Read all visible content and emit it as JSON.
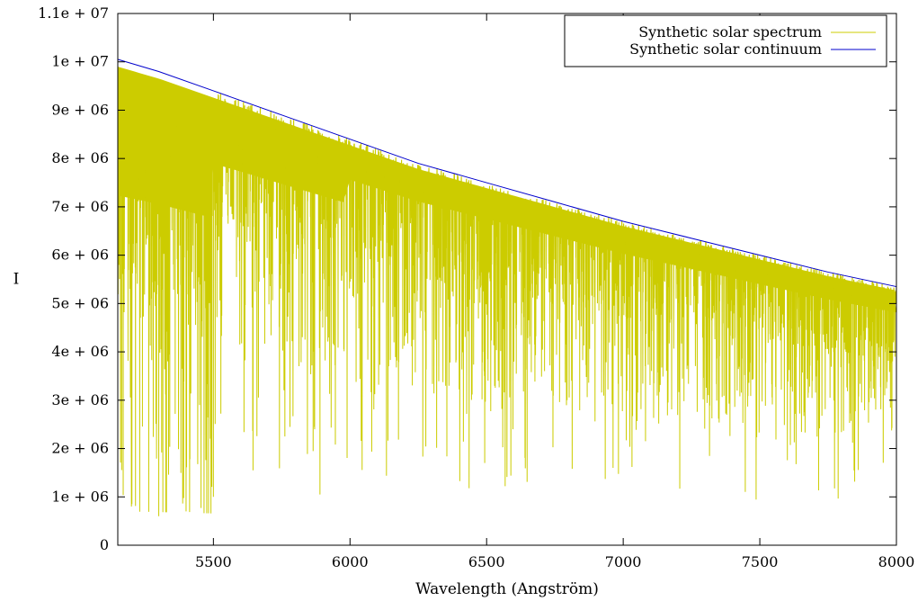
{
  "chart_data": {
    "type": "line",
    "title": "",
    "xlabel": "Wavelength (Angström)",
    "ylabel": "I",
    "xlim": [
      5150,
      8000
    ],
    "ylim": [
      0,
      11000000
    ],
    "grid": false,
    "legend_position": "top-right",
    "x_ticks": [
      5500,
      6000,
      6500,
      7000,
      7500,
      8000
    ],
    "x_tick_labels": [
      "5500",
      "6000",
      "6500",
      "7000",
      "7500",
      "8000"
    ],
    "y_ticks": [
      0,
      1000000,
      2000000,
      3000000,
      4000000,
      5000000,
      6000000,
      7000000,
      8000000,
      9000000,
      10000000,
      11000000
    ],
    "y_tick_labels": [
      "0",
      "1e + 06",
      "2e + 06",
      "3e + 06",
      "4e + 06",
      "5e + 06",
      "6e + 06",
      "7e + 06",
      "8e + 06",
      "9e + 06",
      "1e + 07",
      "1.1e + 07"
    ],
    "series": [
      {
        "name": "Synthetic solar spectrum",
        "color": "#cccc00",
        "style": "dense absorption-line spectrum lying below the continuum",
        "x": [
          5150,
          5200,
          5250,
          5300,
          5350,
          5400,
          5450,
          5500,
          5600,
          5700,
          5800,
          5890,
          5900,
          6000,
          6100,
          6200,
          6300,
          6400,
          6500,
          6563,
          6600,
          6700,
          6800,
          6900,
          7000,
          7100,
          7200,
          7300,
          7400,
          7500,
          7600,
          7700,
          7800,
          7900,
          8000
        ],
        "y": [
          9900000,
          800000,
          9800000,
          600000,
          9700000,
          700000,
          9500000,
          1000000,
          9100000,
          8700000,
          8500000,
          1050000,
          8400000,
          8200000,
          7900000,
          7700000,
          7500000,
          7400000,
          7200000,
          7000000,
          7100000,
          6800000,
          6500000,
          6400000,
          6300000,
          6100000,
          5900000,
          5800000,
          5700000,
          5600000,
          5600000,
          5500000,
          5500000,
          5400000,
          5300000
        ]
      },
      {
        "name": "Synthetic solar continuum",
        "color": "#0000cc",
        "x": [
          5150,
          5300,
          5500,
          5750,
          6000,
          6250,
          6500,
          6750,
          7000,
          7250,
          7500,
          7750,
          8000
        ],
        "y": [
          10050000,
          9800000,
          9400000,
          8900000,
          8400000,
          7900000,
          7500000,
          7100000,
          6700000,
          6350000,
          6000000,
          5650000,
          5350000
        ]
      }
    ]
  }
}
